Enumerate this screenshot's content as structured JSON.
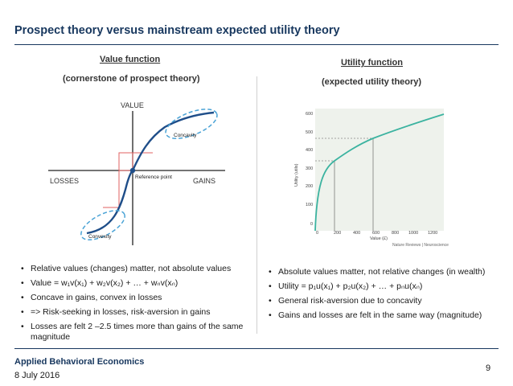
{
  "slide": {
    "title": "Prospect theory versus mainstream expected utility theory",
    "footer_org": "Applied Behavioral Economics",
    "footer_date": "8 July 2016",
    "page_number": "9"
  },
  "left_panel": {
    "heading": "Value function",
    "subheading": "(cornerstone of prospect theory)",
    "axis_y_label": "VALUE",
    "axis_losses_label": "LOSSES",
    "axis_gains_label": "GAINS",
    "ref_point_label": "Reference point",
    "concavity_label": "Concavity",
    "convexity_label": "Convexity",
    "bullets": [
      "Relative values (changes) matter, not absolute values",
      "Value = w₁v(x₁) + w₂v(x₂) + … + wₙv(xₙ)",
      "Concave in gains, convex in losses",
      "=> Risk-seeking in losses, risk-aversion in gains",
      "Losses are felt 2 –2.5 times more than gains of the same magnitude"
    ]
  },
  "right_panel": {
    "heading": "Utility function",
    "subheading": "(expected utility theory)",
    "y_axis_label": "Utility (utils)",
    "x_axis_label": "Value (£)",
    "source_label": "Nature Reviews | Neuroscience",
    "y_ticks": [
      "0",
      "100",
      "200",
      "300",
      "400",
      "500",
      "600"
    ],
    "x_ticks": [
      "0",
      "200",
      "400",
      "600",
      "800",
      "1000",
      "1200"
    ],
    "bullets": [
      "Absolute values matter, not relative changes (in wealth)",
      "Utility = p₁u(x₁) + p₂u(x₂) + … + pₙu(xₙ)",
      "General risk-aversion due to concavity",
      "Gains and losses are felt in the same way (magnitude)"
    ]
  },
  "colors": {
    "title": "#17375e",
    "value_curve": "#1f4e89",
    "dashed_ellipse": "#4aa3d6",
    "ref_box": "#e06060",
    "utility_curve": "#3bb3a0",
    "plot_bg": "#eef2ec"
  }
}
